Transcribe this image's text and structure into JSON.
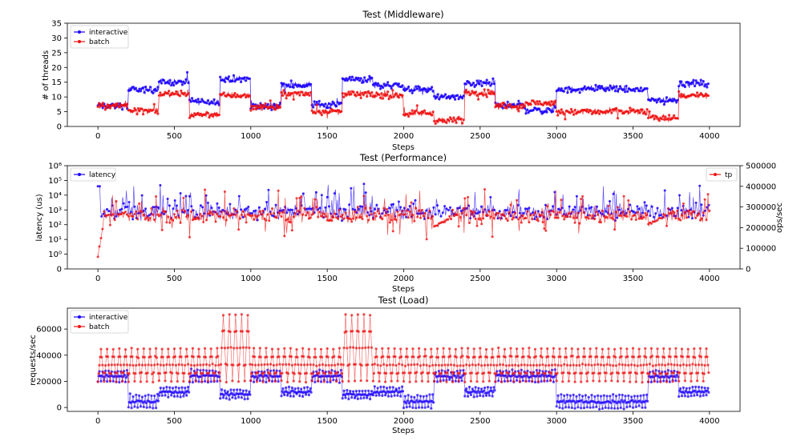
{
  "colors": {
    "interactive": "#1a00ff",
    "batch": "#ee1111",
    "latency": "#1a00ff",
    "tp": "#ee1111"
  },
  "chart_data": [
    {
      "id": "middleware",
      "type": "line",
      "title": "Test (Middleware)",
      "xlabel": "Steps",
      "ylabel": "# of threads",
      "xlim": [
        -200,
        4200
      ],
      "ylim": [
        0,
        35
      ],
      "xticks": [
        0,
        500,
        1000,
        1500,
        2000,
        2500,
        3000,
        3500,
        4000
      ],
      "yticks": [
        0,
        5,
        10,
        15,
        20,
        25,
        30,
        35
      ],
      "legend": "upper-left",
      "series": [
        {
          "name": "interactive",
          "segments": [
            {
              "x": [
                0,
                200
              ],
              "y": 7
            },
            {
              "x": [
                200,
                400
              ],
              "y": 12.5
            },
            {
              "x": [
                400,
                600
              ],
              "y": 15
            },
            {
              "x": [
                600,
                800
              ],
              "y": 8.5
            },
            {
              "x": [
                800,
                1000
              ],
              "y": 16
            },
            {
              "x": [
                1000,
                1200
              ],
              "y": 7
            },
            {
              "x": [
                1200,
                1400
              ],
              "y": 14
            },
            {
              "x": [
                1400,
                1600
              ],
              "y": 7.5
            },
            {
              "x": [
                1600,
                1800
              ],
              "y": 16
            },
            {
              "x": [
                1800,
                2000
              ],
              "y": 14
            },
            {
              "x": [
                2000,
                2200
              ],
              "y": 12.5
            },
            {
              "x": [
                2200,
                2400
              ],
              "y": 10
            },
            {
              "x": [
                2400,
                2600
              ],
              "y": 14.5
            },
            {
              "x": [
                2600,
                2800
              ],
              "y": 7
            },
            {
              "x": [
                2800,
                3000
              ],
              "y": 5.5
            },
            {
              "x": [
                3000,
                3200
              ],
              "y": 12.5
            },
            {
              "x": [
                3200,
                3400
              ],
              "y": 13
            },
            {
              "x": [
                3400,
                3600
              ],
              "y": 12.5
            },
            {
              "x": [
                3600,
                3800
              ],
              "y": 9
            },
            {
              "x": [
                3800,
                4000
              ],
              "y": 14.5
            }
          ]
        },
        {
          "name": "batch",
          "segments": [
            {
              "x": [
                0,
                200
              ],
              "y": 7
            },
            {
              "x": [
                200,
                400
              ],
              "y": 5.5
            },
            {
              "x": [
                400,
                600
              ],
              "y": 11
            },
            {
              "x": [
                600,
                800
              ],
              "y": 4
            },
            {
              "x": [
                800,
                1000
              ],
              "y": 10.5
            },
            {
              "x": [
                1000,
                1200
              ],
              "y": 6.5
            },
            {
              "x": [
                1200,
                1400
              ],
              "y": 11
            },
            {
              "x": [
                1400,
                1600
              ],
              "y": 5
            },
            {
              "x": [
                1600,
                1800
              ],
              "y": 11
            },
            {
              "x": [
                1800,
                2000
              ],
              "y": 10.5
            },
            {
              "x": [
                2000,
                2200
              ],
              "y": 4.5
            },
            {
              "x": [
                2200,
                2400
              ],
              "y": 2
            },
            {
              "x": [
                2400,
                2600
              ],
              "y": 11.5
            },
            {
              "x": [
                2600,
                2800
              ],
              "y": 7
            },
            {
              "x": [
                2800,
                3000
              ],
              "y": 8
            },
            {
              "x": [
                3000,
                3200
              ],
              "y": 5
            },
            {
              "x": [
                3200,
                3400
              ],
              "y": 5
            },
            {
              "x": [
                3400,
                3600
              ],
              "y": 5
            },
            {
              "x": [
                3600,
                3800
              ],
              "y": 3
            },
            {
              "x": [
                3800,
                4000
              ],
              "y": 10.5
            }
          ]
        }
      ]
    },
    {
      "id": "performance",
      "type": "line",
      "title": "Test (Performance)",
      "xlabel": "Steps",
      "ylabel": "latency (us)",
      "y2label": "ops/sec",
      "xlim": [
        -200,
        4200
      ],
      "ylim": [
        0,
        1000000
      ],
      "yscale": "symlog",
      "y2lim": [
        0,
        500000
      ],
      "xticks": [
        0,
        500,
        1000,
        1500,
        2000,
        2500,
        3000,
        3500,
        4000
      ],
      "yticks": [
        0,
        1,
        10,
        100,
        1000,
        10000,
        100000,
        1000000
      ],
      "yticklabels": [
        "0",
        "10⁰",
        "10¹",
        "10²",
        "10³",
        "10⁴",
        "10⁵",
        "10⁶"
      ],
      "y2ticks": [
        0,
        100000,
        200000,
        300000,
        400000,
        500000
      ],
      "legend_left": "upper-left",
      "legend_right": "upper-right",
      "series": [
        {
          "name": "latency",
          "axis": "left",
          "baseline": 800,
          "spread_decades": 1.3
        },
        {
          "name": "tp",
          "axis": "right",
          "baseline": 260000,
          "spread": 30000,
          "dips": [
            {
              "x": [
                0,
                40
              ],
              "y": 60000
            },
            {
              "x": [
                2200,
                2300
              ],
              "y": 200000
            },
            {
              "x": [
                3600,
                3700
              ],
              "y": 215000
            }
          ]
        }
      ]
    },
    {
      "id": "load",
      "type": "line",
      "title": "Test (Load)",
      "xlabel": "Steps",
      "ylabel": "requests/sec",
      "xlim": [
        -200,
        4200
      ],
      "ylim": [
        -3000,
        76000
      ],
      "xticks": [
        0,
        500,
        1000,
        1500,
        2000,
        2500,
        3000,
        3500,
        4000
      ],
      "yticks": [
        0,
        20000,
        40000,
        60000
      ],
      "legend": "upper-left",
      "series": [
        {
          "name": "interactive",
          "segments": [
            {
              "x": [
                0,
                200
              ],
              "low": 20000,
              "high": 28000
            },
            {
              "x": [
                200,
                400
              ],
              "low": 0,
              "high": 9000
            },
            {
              "x": [
                400,
                600
              ],
              "low": 9000,
              "high": 15000
            },
            {
              "x": [
                600,
                800
              ],
              "low": 20000,
              "high": 28000
            },
            {
              "x": [
                800,
                1000
              ],
              "low": 7000,
              "high": 13000
            },
            {
              "x": [
                1000,
                1200
              ],
              "low": 20000,
              "high": 28000
            },
            {
              "x": [
                1200,
                1400
              ],
              "low": 9000,
              "high": 15000
            },
            {
              "x": [
                1400,
                1600
              ],
              "low": 20000,
              "high": 28000
            },
            {
              "x": [
                1600,
                1800
              ],
              "low": 7000,
              "high": 13000
            },
            {
              "x": [
                1800,
                2000
              ],
              "low": 9000,
              "high": 15000
            },
            {
              "x": [
                2000,
                2200
              ],
              "low": 0,
              "high": 9000
            },
            {
              "x": [
                2200,
                2400
              ],
              "low": 20000,
              "high": 28000
            },
            {
              "x": [
                2400,
                2600
              ],
              "low": 9000,
              "high": 15000
            },
            {
              "x": [
                2600,
                3000
              ],
              "low": 20000,
              "high": 28000
            },
            {
              "x": [
                3000,
                3600
              ],
              "low": 0,
              "high": 9000
            },
            {
              "x": [
                3600,
                3800
              ],
              "low": 20000,
              "high": 28000
            },
            {
              "x": [
                3800,
                4000
              ],
              "low": 9000,
              "high": 15000
            }
          ]
        },
        {
          "name": "batch",
          "segments": [
            {
              "x": [
                0,
                800
              ],
              "low": 20000,
              "high": 45000
            },
            {
              "x": [
                800,
                1000
              ],
              "low": 20000,
              "high": 71000
            },
            {
              "x": [
                1000,
                1600
              ],
              "low": 20000,
              "high": 45000
            },
            {
              "x": [
                1600,
                1800
              ],
              "low": 20000,
              "high": 71000
            },
            {
              "x": [
                1800,
                4000
              ],
              "low": 20000,
              "high": 45000
            }
          ]
        }
      ]
    }
  ]
}
